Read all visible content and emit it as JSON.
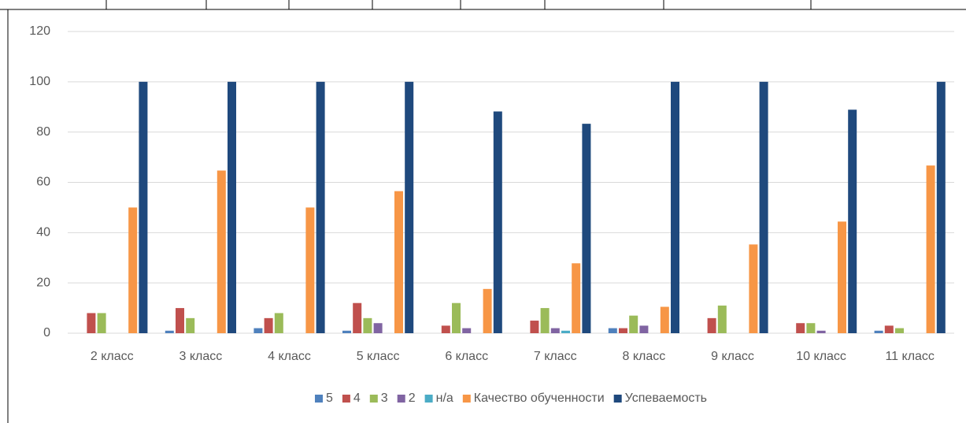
{
  "chart_data": {
    "type": "bar",
    "categories": [
      "2 класс",
      "3 класс",
      "4 класс",
      "5 класс",
      "6 класс",
      "7 класс",
      "8 класс",
      "9 класс",
      "10 класс",
      "11 класс"
    ],
    "series": [
      {
        "name": "5",
        "color": "#4f81bd",
        "values": [
          0,
          1,
          2,
          1,
          0,
          0,
          2,
          0,
          0,
          1
        ]
      },
      {
        "name": "4",
        "color": "#c0504d",
        "values": [
          8,
          10,
          6,
          12,
          3,
          5,
          2,
          6,
          4,
          3
        ]
      },
      {
        "name": "3",
        "color": "#9bbb59",
        "values": [
          8,
          6,
          8,
          6,
          12,
          10,
          7,
          11,
          4,
          2
        ]
      },
      {
        "name": "2",
        "color": "#8064a2",
        "values": [
          0,
          0,
          0,
          4,
          2,
          2,
          3,
          0,
          1,
          0
        ]
      },
      {
        "name": "н/а",
        "color": "#4bacc6",
        "values": [
          0,
          0,
          0,
          0,
          0,
          1,
          0,
          0,
          0,
          0
        ]
      },
      {
        "name": "Качество обученности",
        "color": "#f79646",
        "values": [
          50,
          64.7,
          50,
          56.5,
          17.6,
          27.8,
          10.5,
          35.3,
          44.4,
          66.7
        ]
      },
      {
        "name": "Успеваемость",
        "color": "#1f497d",
        "values": [
          100,
          100,
          100,
          100,
          88.2,
          83.3,
          100,
          100,
          88.9,
          100
        ]
      }
    ],
    "ylim": [
      0,
      120
    ],
    "yticks": [
      0,
      20,
      40,
      60,
      80,
      100,
      120
    ],
    "grid": true,
    "legend": "bottom"
  }
}
